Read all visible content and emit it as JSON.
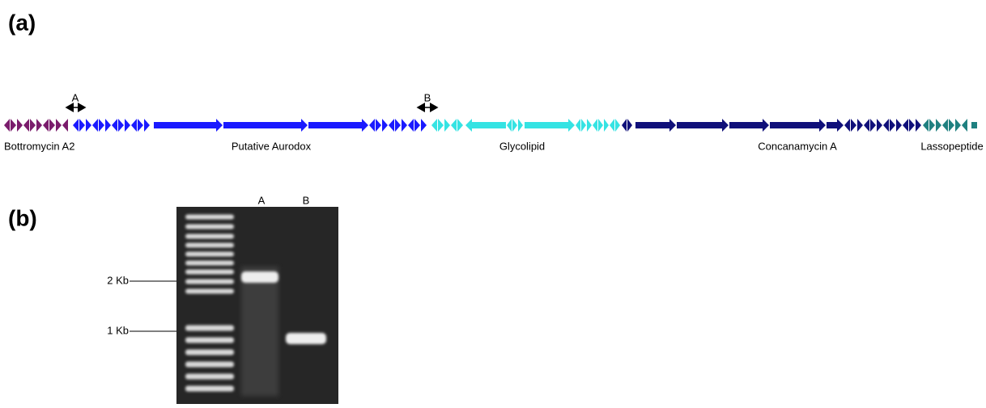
{
  "panel_a": {
    "label": "(a)",
    "arrows": [
      {
        "label": "A"
      },
      {
        "label": "B"
      }
    ],
    "clusters": [
      "Bottromycin A2",
      "Putative Aurodox",
      "Glycolipid",
      "Concanamycin A",
      "Lassopeptide"
    ]
  },
  "panel_b": {
    "label": "(b)",
    "lanes": [
      "A",
      "B"
    ],
    "markers": [
      "2 Kb",
      "1 Kb"
    ]
  }
}
